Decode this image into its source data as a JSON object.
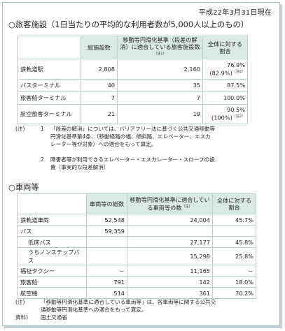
{
  "date": "平成22年3月31日現在",
  "section1": {
    "title": "○旅客施設（1日当たりの平均的な利用者数が5,000人以上のもの）",
    "headers": {
      "count": "総施設数",
      "compliant": "移動等円滑化基準（段差の解消）に適合している旅客施設数",
      "compliant_note": "（注1）",
      "ratio": "全体に対する割合"
    },
    "rows": [
      {
        "name": "鉄軌道駅",
        "count": "2,808",
        "compliant": "2,160",
        "ratio": "76.9%",
        "ratio2": "(82.9%)",
        "ratio2_note": "（注2）"
      },
      {
        "name": "バスターミナル",
        "count": "40",
        "compliant": "35",
        "ratio": "87.5%",
        "ratio2": "",
        "ratio2_note": ""
      },
      {
        "name": "旅客船ターミナル",
        "count": "7",
        "compliant": "7",
        "ratio": "100.0%",
        "ratio2": "",
        "ratio2_note": ""
      },
      {
        "name": "航空旅客ターミナル",
        "count": "21",
        "compliant": "19",
        "ratio": "90.5%",
        "ratio2": "(100%)",
        "ratio2_note": "（注2）"
      }
    ],
    "notes": [
      {
        "label": "(注)",
        "num": "1",
        "text1": "「段差の解消」については、バリアフリー法に基づく公共交通移動等",
        "text2": "円滑化基準第4条、（移動経路の幅、傾斜路、エレベーター、エスカ",
        "text3": "レーター等が対象）への適合をもって算定。"
      },
      {
        "label": "",
        "num": "2",
        "text1": "障害者等が利用できるエレベーター・エスカレーター・スロープの設",
        "text2": "置（事実的な段差解消）",
        "text3": ""
      }
    ]
  },
  "section2": {
    "title": "○車両等",
    "headers": {
      "count": "車両等の総数",
      "compliant": "移動等円滑化基準に適合している車両等の数",
      "compliant_note": "（注）",
      "ratio": "全体に対する割合"
    },
    "rows": [
      {
        "name": "鉄軌道車両",
        "count": "52,548",
        "compliant": "24,004",
        "ratio": "45.7%",
        "sub": false
      },
      {
        "name": "バス",
        "count": "59,359",
        "compliant": "",
        "ratio": "",
        "sub": false
      },
      {
        "name": "低床バス",
        "count": "",
        "compliant": "27,177",
        "ratio": "45.8%",
        "sub": true
      },
      {
        "name": "うちノンステップバス",
        "count": "",
        "compliant": "15,298",
        "ratio": "25.8%",
        "sub": true
      },
      {
        "name": "福祉タクシー",
        "count": "－",
        "compliant": "11,165",
        "ratio": "－",
        "sub": false
      },
      {
        "name": "旅客船",
        "count": "791",
        "compliant": "142",
        "ratio": "18.0%",
        "sub": false
      },
      {
        "name": "航空機",
        "count": "514",
        "compliant": "361",
        "ratio": "70.2%",
        "sub": false
      }
    ],
    "note_label": "(注)",
    "note_text1": "「移動等円滑化基準に適合している車両等」は、各車両等に関する公共交",
    "note_text2": "通移動等円滑化基準への適合をもって算定。",
    "source_label": "資料)",
    "source_text": "国土交通省"
  }
}
